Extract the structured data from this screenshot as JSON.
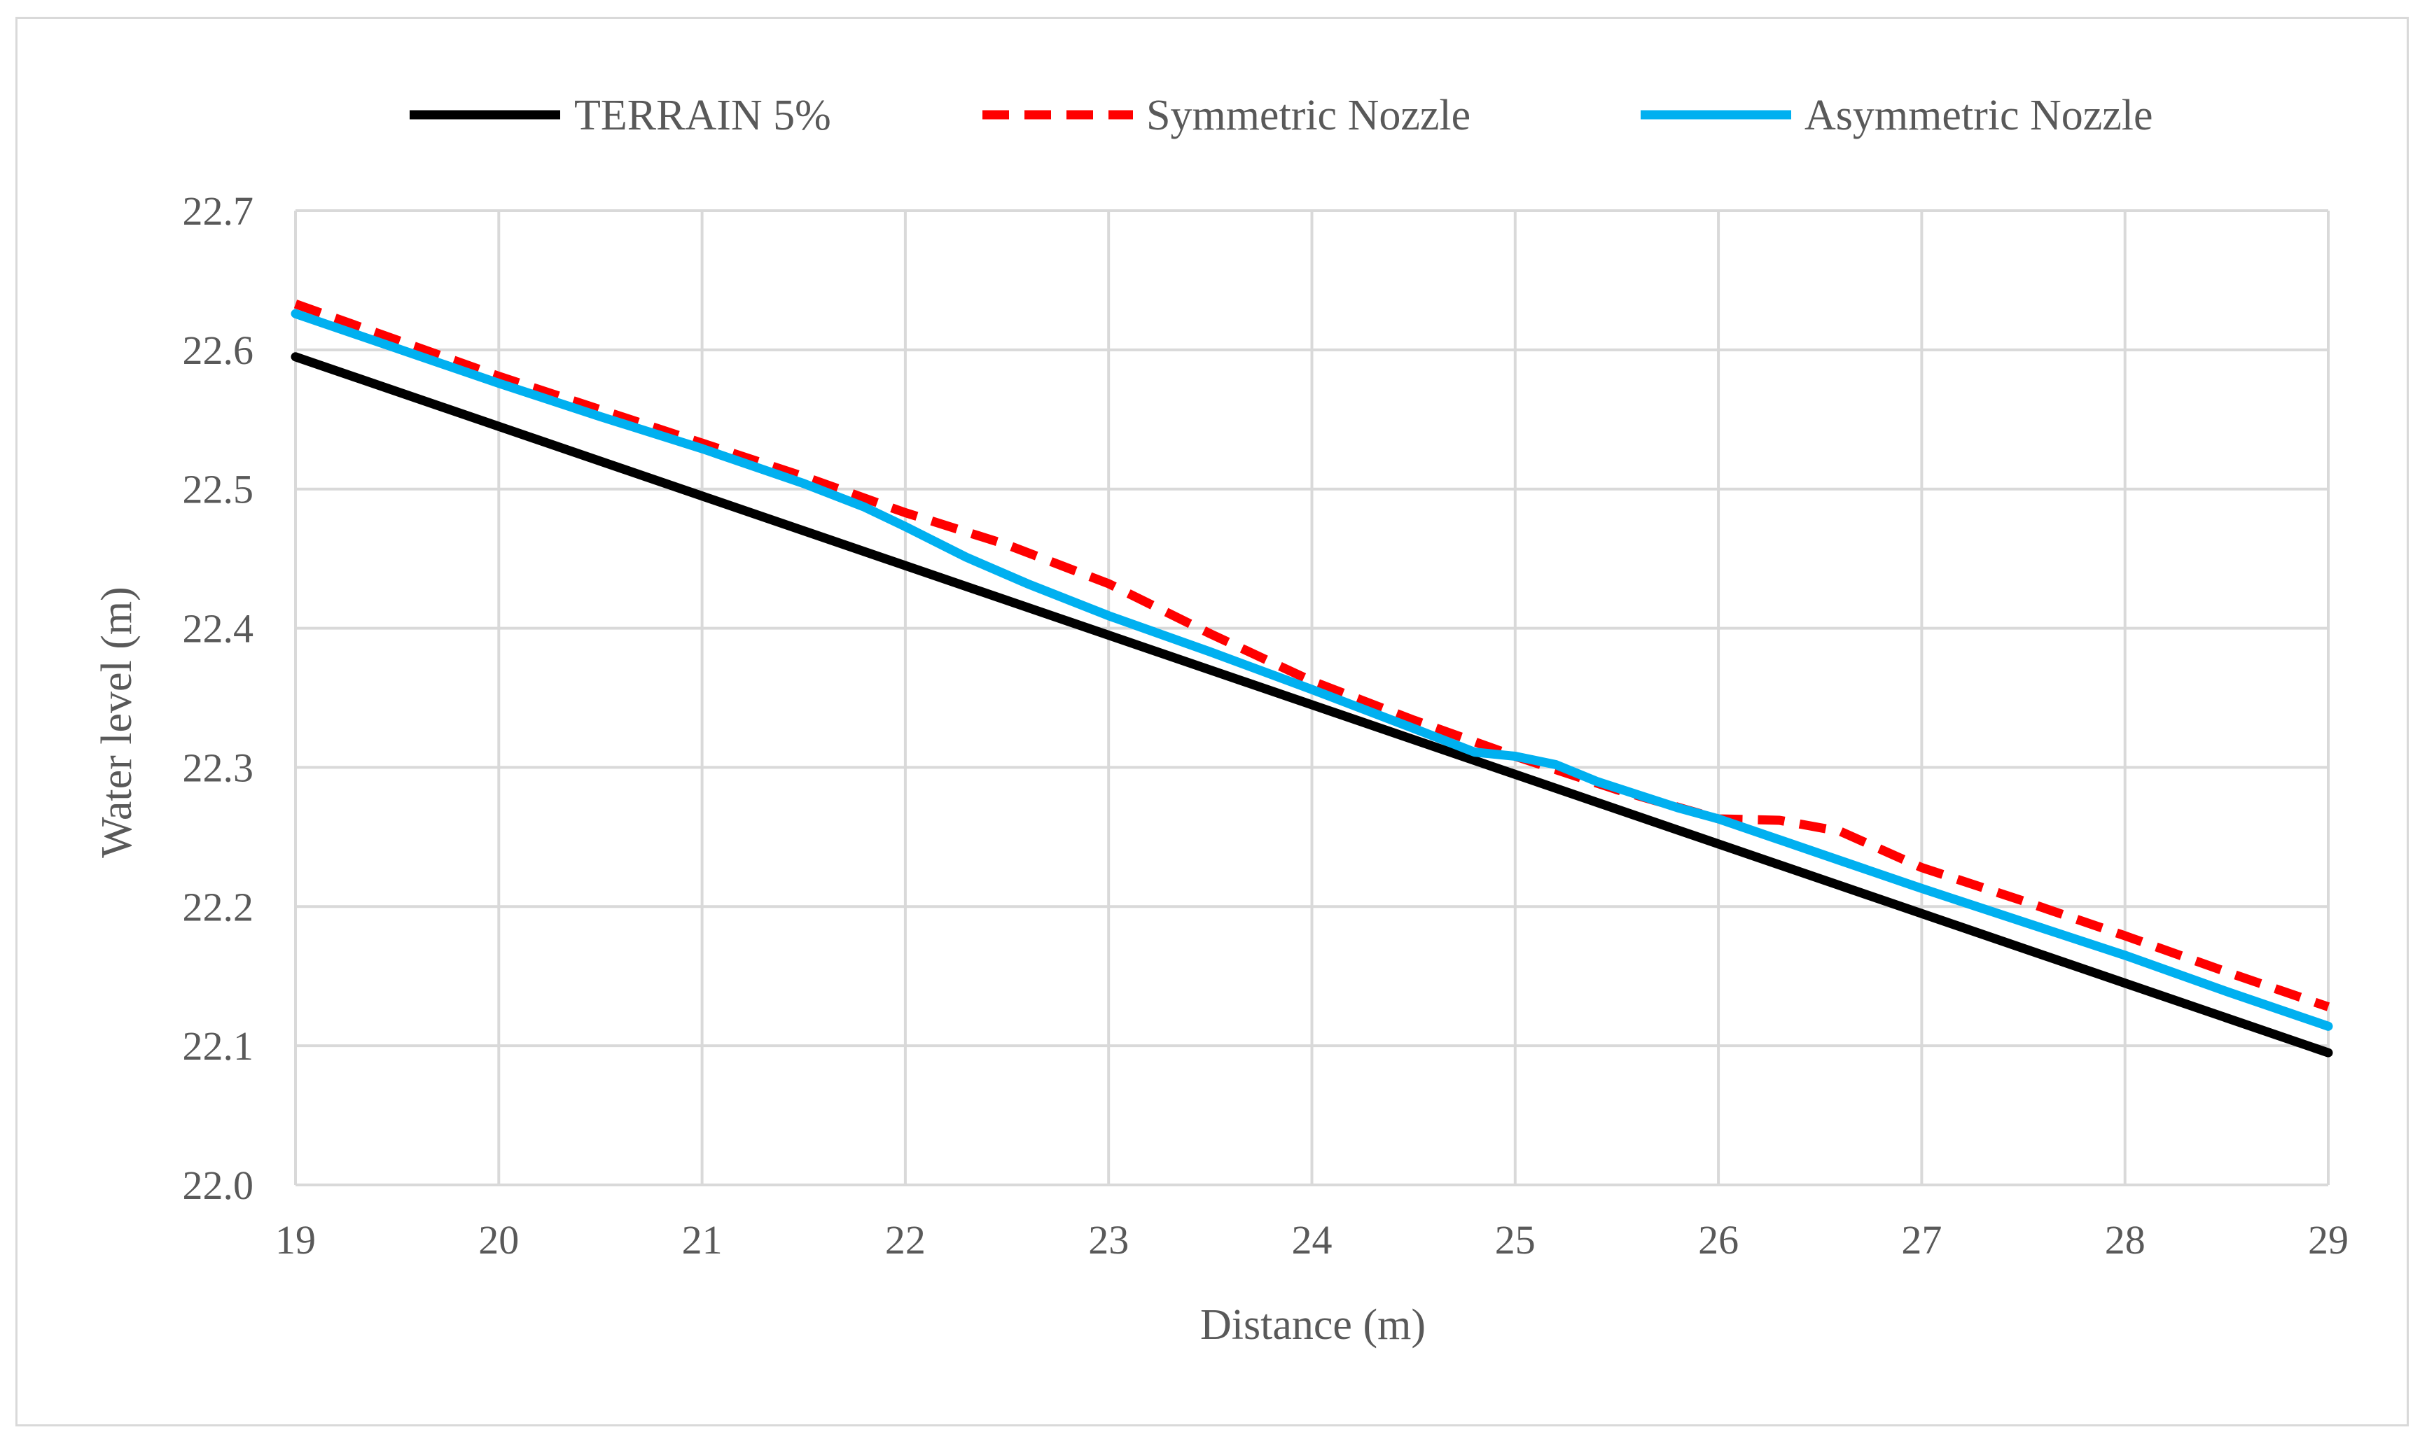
{
  "chart_data": {
    "type": "line",
    "title": "",
    "xlabel": "Distance (m)",
    "ylabel": "Water level (m)",
    "xlim": [
      19,
      29
    ],
    "ylim": [
      22.0,
      22.7
    ],
    "x_ticks": [
      "19",
      "20",
      "21",
      "22",
      "23",
      "24",
      "25",
      "26",
      "27",
      "28",
      "29"
    ],
    "y_ticks": [
      "22.0",
      "22.1",
      "22.2",
      "22.3",
      "22.4",
      "22.5",
      "22.6",
      "22.7"
    ],
    "grid": true,
    "legend_position": "top",
    "series": [
      {
        "name": "TERRAIN 5%",
        "color": "#000000",
        "style": "solid",
        "x": [
          19,
          29
        ],
        "y": [
          22.595,
          22.095
        ]
      },
      {
        "name": "Symmetric Nozzle",
        "color": "#ff0000",
        "style": "dashed",
        "x": [
          19,
          19.5,
          20,
          20.5,
          21,
          21.5,
          22,
          22.5,
          23,
          23.5,
          24,
          24.5,
          25,
          25.5,
          26,
          26.3,
          26.6,
          27,
          27.5,
          28,
          28.5,
          29
        ],
        "y": [
          22.633,
          22.607,
          22.581,
          22.557,
          22.533,
          22.509,
          22.483,
          22.46,
          22.432,
          22.396,
          22.362,
          22.334,
          22.308,
          22.284,
          22.263,
          22.262,
          22.254,
          22.228,
          22.204,
          22.179,
          22.153,
          22.128
        ]
      },
      {
        "name": "Asymmetric Nozzle",
        "color": "#00b0f0",
        "style": "solid",
        "x": [
          19,
          19.5,
          20,
          20.5,
          21,
          21.5,
          21.8,
          22,
          22.3,
          22.6,
          23,
          23.5,
          24,
          24.5,
          24.8,
          25,
          25.2,
          25.4,
          25.8,
          26,
          26.3,
          26.6,
          27,
          27.5,
          28,
          28.5,
          29
        ],
        "y": [
          22.626,
          22.601,
          22.576,
          22.552,
          22.529,
          22.504,
          22.487,
          22.473,
          22.451,
          22.432,
          22.409,
          22.383,
          22.356,
          22.328,
          22.311,
          22.308,
          22.302,
          22.29,
          22.271,
          22.263,
          22.248,
          22.233,
          22.213,
          22.189,
          22.165,
          22.139,
          22.114
        ]
      }
    ]
  }
}
